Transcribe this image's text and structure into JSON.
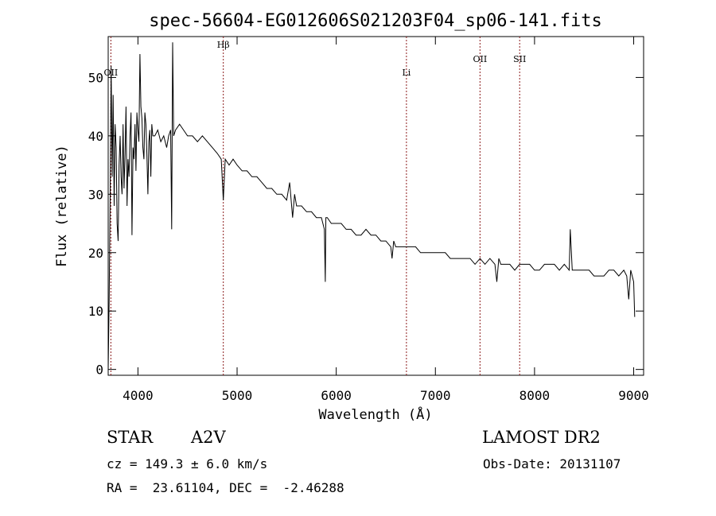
{
  "chart_data": {
    "type": "line",
    "title": "spec-56604-EG012606S021203F04_sp06-141.fits",
    "xlabel": "Wavelength (Å)",
    "ylabel": "Flux (relative)",
    "xlim": [
      3700,
      9100
    ],
    "ylim": [
      -1,
      57
    ],
    "xticks": [
      4000,
      5000,
      6000,
      7000,
      8000,
      9000
    ],
    "yticks": [
      0,
      10,
      20,
      30,
      40,
      50
    ],
    "grid": false,
    "line_color": "#000000",
    "marker_color": "#8b1a1a",
    "spectral_lines": [
      {
        "name": "OII",
        "wavelength": 3727
      },
      {
        "name": "Hβ",
        "wavelength": 4861
      },
      {
        "name": "Li",
        "wavelength": 6708
      },
      {
        "name": "OII",
        "wavelength": 7450
      },
      {
        "name": "SII",
        "wavelength": 7850
      }
    ],
    "series": [
      {
        "x": [
          3700,
          3710,
          3720,
          3730,
          3740,
          3750,
          3760,
          3770,
          3780,
          3790,
          3800,
          3810,
          3820,
          3830,
          3840,
          3850,
          3860,
          3870,
          3880,
          3890,
          3900,
          3910,
          3920,
          3930,
          3940,
          3950,
          3960,
          3970,
          3980,
          3990,
          4000,
          4010,
          4020,
          4030,
          4040,
          4050,
          4060,
          4070,
          4080,
          4090,
          4100,
          4110,
          4120,
          4130,
          4140,
          4150,
          4170,
          4200,
          4230,
          4260,
          4290,
          4310,
          4330,
          4340,
          4350,
          4360,
          4380,
          4420,
          4460,
          4500,
          4550,
          4600,
          4650,
          4700,
          4750,
          4800,
          4840,
          4861,
          4880,
          4920,
          4960,
          5000,
          5050,
          5100,
          5150,
          5200,
          5250,
          5300,
          5350,
          5400,
          5450,
          5500,
          5530,
          5560,
          5580,
          5600,
          5650,
          5700,
          5750,
          5800,
          5850,
          5880,
          5890,
          5895,
          5910,
          5950,
          6000,
          6050,
          6100,
          6150,
          6200,
          6250,
          6300,
          6350,
          6400,
          6450,
          6500,
          6550,
          6563,
          6580,
          6600,
          6650,
          6700,
          6750,
          6800,
          6850,
          6900,
          6950,
          7000,
          7050,
          7100,
          7150,
          7200,
          7250,
          7300,
          7350,
          7400,
          7450,
          7500,
          7550,
          7600,
          7620,
          7640,
          7660,
          7700,
          7750,
          7800,
          7850,
          7900,
          7950,
          8000,
          8050,
          8100,
          8150,
          8200,
          8250,
          8300,
          8350,
          8360,
          8380,
          8400,
          8450,
          8500,
          8550,
          8600,
          8650,
          8700,
          8750,
          8800,
          8850,
          8900,
          8930,
          8950,
          8970,
          9000,
          9010
        ],
        "y": [
          0,
          12,
          30,
          52,
          33,
          47,
          28,
          42,
          38,
          25,
          22,
          35,
          40,
          33,
          30,
          42,
          31,
          37,
          45,
          28,
          36,
          33,
          40,
          44,
          23,
          38,
          36,
          42,
          34,
          44,
          41,
          39,
          54,
          45,
          43,
          38,
          36,
          44,
          42,
          37,
          30,
          39,
          41,
          33,
          42,
          40,
          40,
          41,
          39,
          40,
          38,
          40,
          41,
          24,
          56,
          40,
          41,
          42,
          41,
          40,
          40,
          39,
          40,
          39,
          38,
          37,
          36,
          29,
          36,
          35,
          36,
          35,
          34,
          34,
          33,
          33,
          32,
          31,
          31,
          30,
          30,
          29,
          32,
          26,
          30,
          28,
          28,
          27,
          27,
          26,
          26,
          24,
          15,
          26,
          26,
          25,
          25,
          25,
          24,
          24,
          23,
          23,
          24,
          23,
          23,
          22,
          22,
          21,
          19,
          22,
          21,
          21,
          21,
          21,
          21,
          20,
          20,
          20,
          20,
          20,
          20,
          19,
          19,
          19,
          19,
          19,
          18,
          19,
          18,
          19,
          18,
          15,
          19,
          18,
          18,
          18,
          17,
          18,
          18,
          18,
          17,
          17,
          18,
          18,
          18,
          17,
          18,
          17,
          24,
          17,
          17,
          17,
          17,
          17,
          16,
          16,
          16,
          17,
          17,
          16,
          17,
          16,
          12,
          17,
          15,
          9
        ]
      }
    ]
  },
  "footer": {
    "object_type": "STAR",
    "spectral_class": "A2V",
    "cz": "cz = 149.3 ± 6.0 km/s",
    "coords": "RA =  23.61104, DEC =  -2.46288",
    "survey": "LAMOST DR2",
    "obs_date": "Obs-Date: 20131107"
  }
}
